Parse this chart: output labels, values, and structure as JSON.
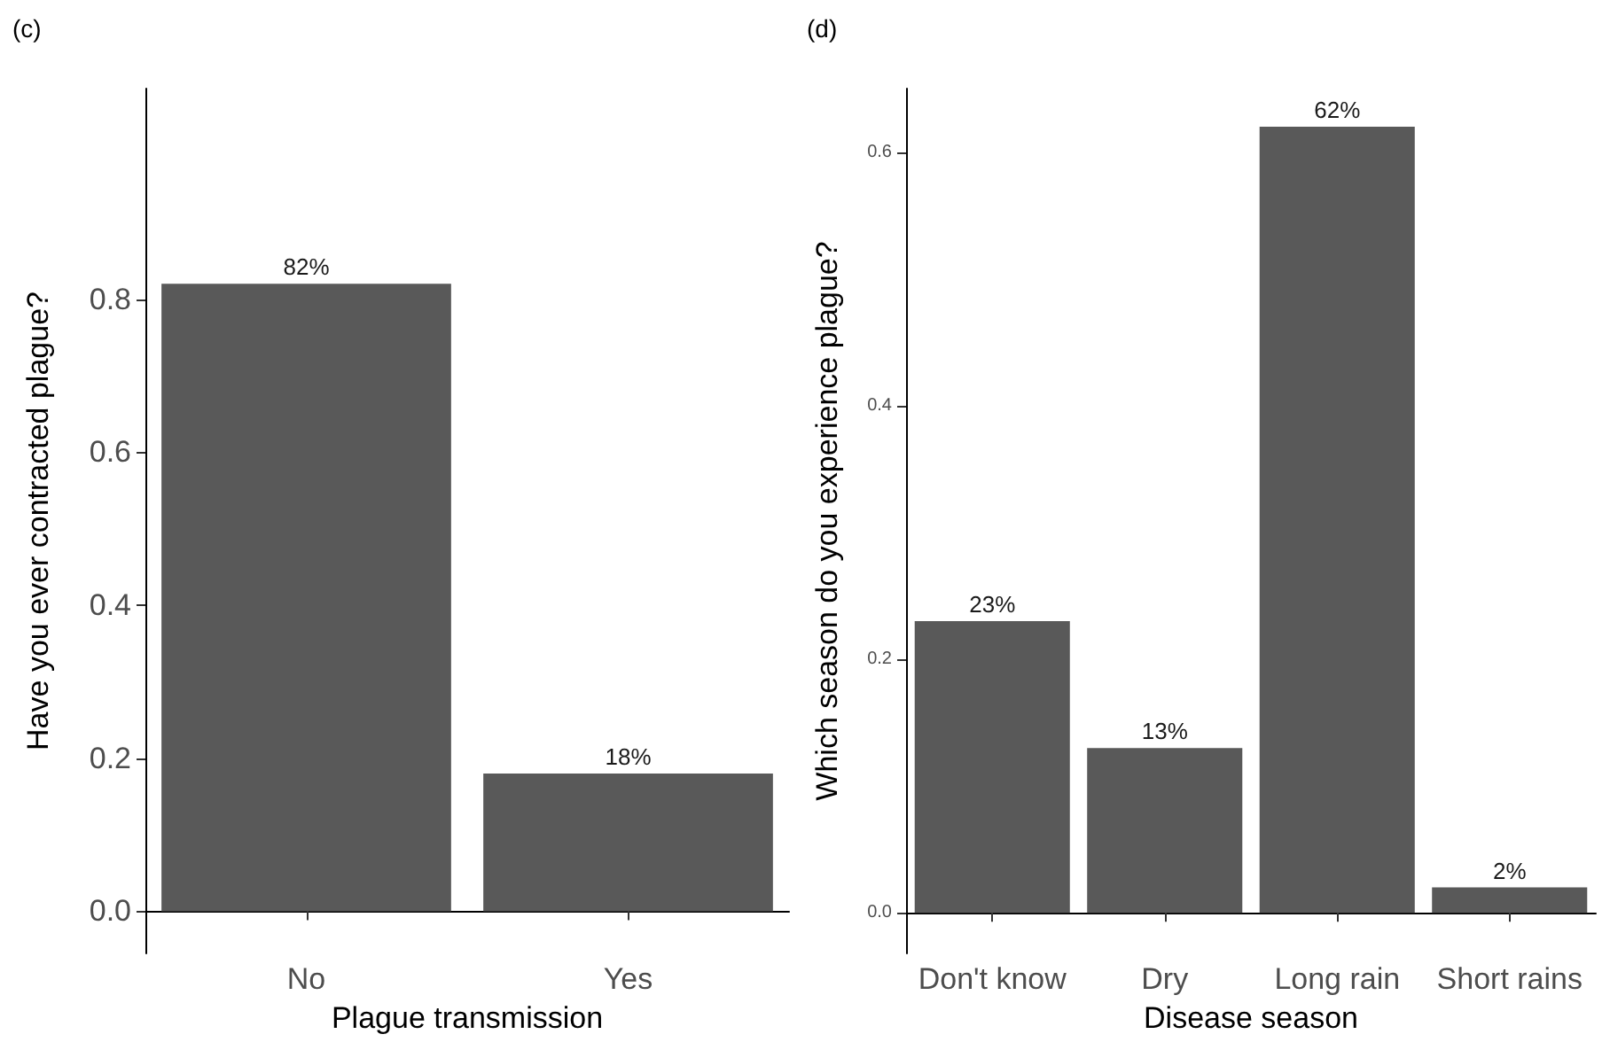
{
  "chart_data": [
    {
      "type": "bar",
      "title": "(c)",
      "xlabel": "Plague transmission",
      "ylabel": "Have you ever contracted plague?",
      "categories": [
        "No",
        "Yes"
      ],
      "values": [
        0.82,
        0.18
      ],
      "value_labels": [
        "82%",
        "18%"
      ],
      "color": "#595959",
      "ylim": [
        -0.055,
        1.075
      ],
      "yticks": [
        {
          "value": 0,
          "label": "0.0"
        },
        0.2,
        0.4,
        0.6,
        0.8
      ],
      "grid": false
    },
    {
      "type": "bar",
      "title": "(d)",
      "xlabel": "Disease season",
      "ylabel": "Which season do you experience plague?",
      "categories": [
        "Don't know",
        "Dry",
        "Long rain",
        "Short rains"
      ],
      "values": [
        0.23,
        0.13,
        0.62,
        0.02
      ],
      "value_labels": [
        "23%",
        "13%",
        "62%",
        "2%"
      ],
      "color": "#595959",
      "ylim": [
        -0.032,
        0.65
      ],
      "yticks": [
        {
          "value": 0,
          "label": "0.0"
        },
        0.2,
        0.4,
        0.6
      ],
      "grid": false
    }
  ]
}
